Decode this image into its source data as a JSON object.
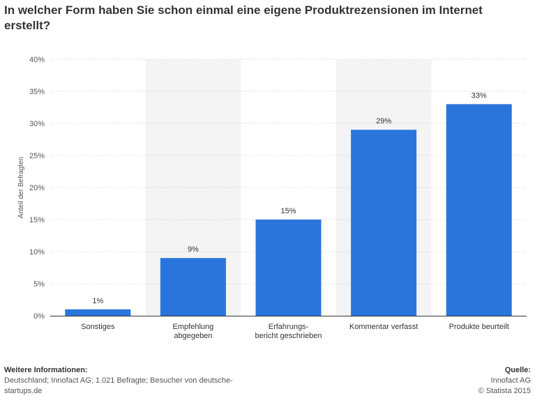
{
  "title": "In welcher Form haben Sie schon einmal eine eigene Produktrezensionen im Internet erstellt?",
  "colors": {
    "bar": "#2a75dc",
    "band": "#f4f4f4",
    "grid": "#cccccc",
    "axis": "#333333"
  },
  "chart_data": {
    "type": "bar",
    "categories": [
      [
        "Sonstiges"
      ],
      [
        "Empfehlung",
        "abgegeben"
      ],
      [
        "Erfahrungs-",
        "bericht geschrieben"
      ],
      [
        "Kommentar verfasst"
      ],
      [
        "Produkte beurteilt"
      ]
    ],
    "values": [
      1,
      9,
      15,
      29,
      33
    ],
    "value_labels": [
      "1%",
      "9%",
      "15%",
      "29%",
      "33%"
    ],
    "ylabel": "Anteil der Befragten",
    "ylim": [
      0,
      40
    ],
    "yticks": [
      0,
      5,
      10,
      15,
      20,
      25,
      30,
      35,
      40
    ],
    "ytick_labels": [
      "0%",
      "5%",
      "10%",
      "15%",
      "20%",
      "25%",
      "30%",
      "35%",
      "40%"
    ],
    "grid": true,
    "legend": "none"
  },
  "footer": {
    "left_heading": "Weitere Informationen:",
    "left_line1": "Deutschland; Innofact AG; 1.021 Befragte; Besucher von deutsche-",
    "left_line2": "startups.de",
    "right_heading": "Quelle:",
    "right_line1": "Innofact AG",
    "right_line2": "© Statista 2015"
  }
}
